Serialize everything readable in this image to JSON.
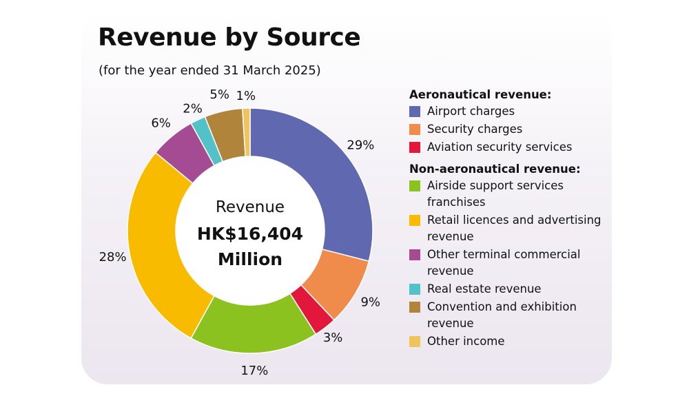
{
  "chart_data": {
    "type": "donut",
    "title": "Revenue by Source",
    "subtitle": "(for the year ended 31 March 2025)",
    "center": {
      "line1": "Revenue",
      "line2": "HK$16,404",
      "line3": "Million"
    },
    "slices": [
      {
        "label": "Airport charges",
        "value": 29,
        "display": "29%",
        "color": "#6068b0"
      },
      {
        "label": "Security charges",
        "value": 9,
        "display": "9%",
        "color": "#ef8c4b"
      },
      {
        "label": "Aviation security services",
        "value": 3,
        "display": "3%",
        "color": "#e3173b"
      },
      {
        "label": "Airside support services franchises",
        "value": 17,
        "display": "17%",
        "color": "#8cc21f"
      },
      {
        "label": "Retail licences and advertising revenue",
        "value": 28,
        "display": "28%",
        "color": "#f8bb00"
      },
      {
        "label": "Other terminal commercial revenue",
        "value": 6,
        "display": "6%",
        "color": "#a54b93"
      },
      {
        "label": "Real estate revenue",
        "value": 2,
        "display": "2%",
        "color": "#53c1c8"
      },
      {
        "label": "Convention and exhibition revenue",
        "value": 5,
        "display": "5%",
        "color": "#b0843b"
      },
      {
        "label": "Other income",
        "value": 1,
        "display": "1%",
        "color": "#efc45c"
      }
    ],
    "legend_placement": "right"
  },
  "legend": {
    "groups": [
      {
        "title": "Aeronautical revenue:",
        "items": [
          {
            "label": "Airport charges",
            "color": "#6068b0"
          },
          {
            "label": "Security charges",
            "color": "#ef8c4b"
          },
          {
            "label": "Aviation security services",
            "color": "#e3173b"
          }
        ]
      },
      {
        "title": "Non-aeronautical revenue:",
        "items": [
          {
            "label": "Airside support services franchises",
            "color": "#8cc21f"
          },
          {
            "label": "Retail licences and advertising revenue",
            "color": "#f8bb00"
          },
          {
            "label": "Other terminal commercial revenue",
            "color": "#a54b93"
          },
          {
            "label": "Real estate revenue",
            "color": "#53c1c8"
          },
          {
            "label": "Convention and exhibition revenue",
            "color": "#b0843b"
          },
          {
            "label": "Other income",
            "color": "#efc45c"
          }
        ]
      }
    ]
  }
}
